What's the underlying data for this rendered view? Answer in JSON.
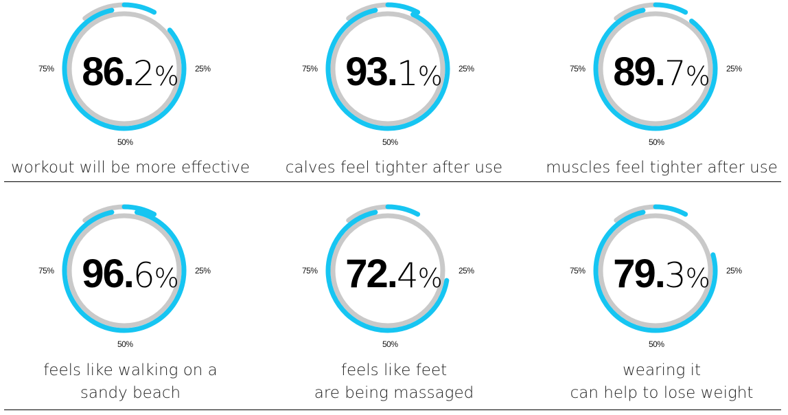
{
  "colors": {
    "accent": "#16c5f2",
    "track": "#c9c9c9",
    "text": "#000000"
  },
  "chart_data": [
    {
      "type": "donut",
      "value": 86.2,
      "whole": "86.",
      "decimal": "2",
      "unit": "%",
      "caption_lines": [
        "workout will be more effective"
      ],
      "ticks": {
        "right": "25%",
        "bottom": "50%",
        "left": "75%"
      }
    },
    {
      "type": "donut",
      "value": 93.1,
      "whole": "93.",
      "decimal": "1",
      "unit": "%",
      "caption_lines": [
        "calves feel tighter after use"
      ],
      "ticks": {
        "right": "25%",
        "bottom": "50%",
        "left": "75%"
      }
    },
    {
      "type": "donut",
      "value": 89.7,
      "whole": "89.",
      "decimal": "7",
      "unit": "%",
      "caption_lines": [
        "muscles feel tighter after use"
      ],
      "ticks": {
        "right": "25%",
        "bottom": "50%",
        "left": "75%"
      }
    },
    {
      "type": "donut",
      "value": 96.6,
      "whole": "96.",
      "decimal": "6",
      "unit": "%",
      "caption_lines": [
        "feels like walking on a",
        "sandy beach"
      ],
      "ticks": {
        "right": "25%",
        "bottom": "50%",
        "left": "75%"
      }
    },
    {
      "type": "donut",
      "value": 72.4,
      "whole": "72.",
      "decimal": "4",
      "unit": "%",
      "caption_lines": [
        "feels like feet",
        "are being massaged"
      ],
      "ticks": {
        "right": "25%",
        "bottom": "50%",
        "left": "75%"
      }
    },
    {
      "type": "donut",
      "value": 79.3,
      "whole": "79.",
      "decimal": "3",
      "unit": "%",
      "caption_lines": [
        "wearing it",
        "can help to lose weight"
      ],
      "ticks": {
        "right": "25%",
        "bottom": "50%",
        "left": "75%"
      }
    }
  ]
}
